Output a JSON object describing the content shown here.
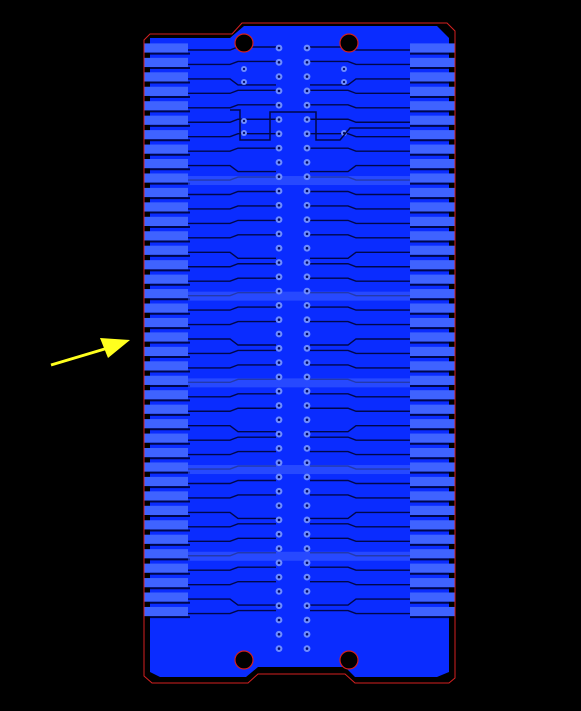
{
  "view": {
    "background": "#000000"
  },
  "board": {
    "outline_color": "#d42020",
    "copper_color": "#0a2cff",
    "copper_light": "#3f63ff",
    "trace_color": "#0a2cff",
    "gap_color": "#00074a",
    "via_ring": "#6f8dff",
    "via_center": "#000a66",
    "pads_per_side": 40,
    "connector_sides": [
      "left-edge",
      "right-edge"
    ],
    "via_columns": 2,
    "mounting_holes": 4
  },
  "annotation": {
    "arrow_color": "#ffff1e",
    "arrow_icon": "yellow-arrow-icon",
    "points_to": "left-edge-fingers"
  }
}
